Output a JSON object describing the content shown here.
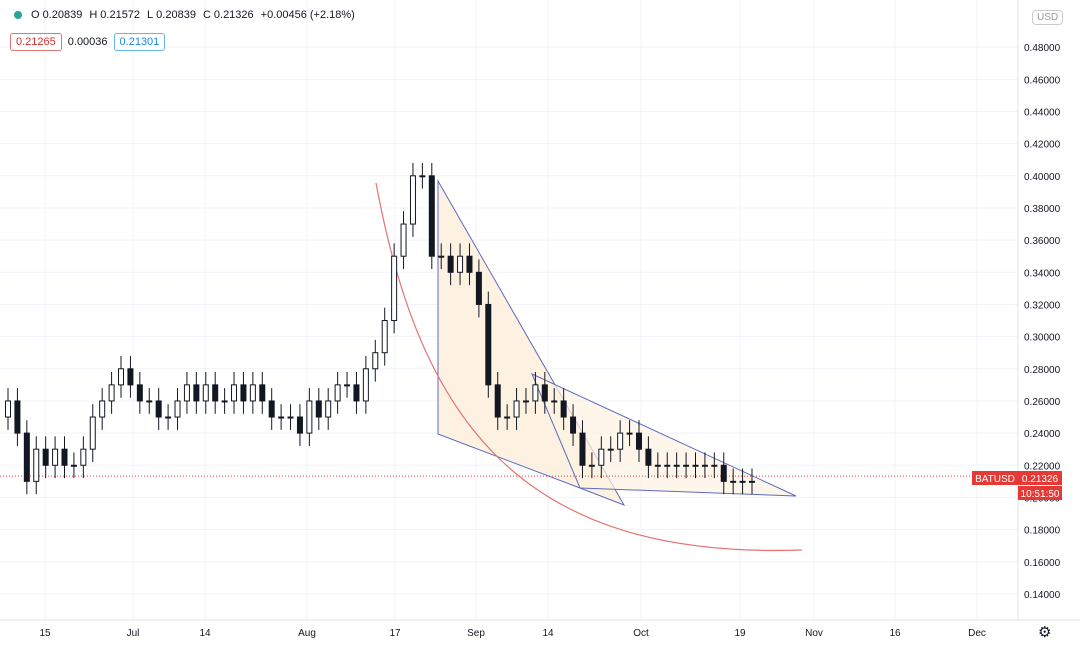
{
  "legend": {
    "open_label": "O",
    "open": "0.20839",
    "high_label": "H",
    "high": "0.21572",
    "low_label": "L",
    "low": "0.20839",
    "close_label": "C",
    "close": "0.21326",
    "change": "+0.00456 (+2.18%)"
  },
  "indicator": {
    "left": "0.21265",
    "middle": "0.00036",
    "right": "0.21301"
  },
  "currency": "USD",
  "price_tag": {
    "symbol": "BATUSD",
    "value": "0.21326",
    "countdown": "10:51:50"
  },
  "settings_icon": "gear-icon",
  "colors": {
    "up": "#26a69a",
    "down": "#131722",
    "pattern": "#5c6bc0",
    "arc": "#e57373",
    "fill": "#fdf2e1",
    "price_tag": "#e53935"
  },
  "chart_data": {
    "type": "candlestick",
    "ylim": [
      0.13,
      0.5
    ],
    "y_ticks": [
      "0.14000",
      "0.16000",
      "0.18000",
      "0.20000",
      "0.22000",
      "0.24000",
      "0.26000",
      "0.28000",
      "0.30000",
      "0.32000",
      "0.34000",
      "0.36000",
      "0.38000",
      "0.40000",
      "0.42000",
      "0.44000",
      "0.46000",
      "0.48000"
    ],
    "x_ticks": [
      "15",
      "Jul",
      "14",
      "Aug",
      "17",
      "Sep",
      "14",
      "Oct",
      "19",
      "Nov",
      "16",
      "Dec"
    ],
    "last_price": 0.21326,
    "candles": [
      0.26,
      0.24,
      0.21,
      0.23,
      0.22,
      0.23,
      0.22,
      0.22,
      0.23,
      0.25,
      0.26,
      0.27,
      0.28,
      0.27,
      0.26,
      0.26,
      0.25,
      0.25,
      0.26,
      0.27,
      0.26,
      0.27,
      0.26,
      0.26,
      0.27,
      0.26,
      0.27,
      0.26,
      0.25,
      0.25,
      0.25,
      0.24,
      0.26,
      0.25,
      0.26,
      0.27,
      0.27,
      0.26,
      0.28,
      0.29,
      0.31,
      0.35,
      0.37,
      0.4,
      0.4,
      0.35,
      0.35,
      0.34,
      0.35,
      0.34,
      0.32,
      0.27,
      0.25,
      0.25,
      0.26,
      0.26,
      0.27,
      0.26,
      0.26,
      0.25,
      0.24,
      0.22,
      0.22,
      0.23,
      0.23,
      0.24,
      0.24,
      0.23,
      0.22,
      0.22,
      0.22,
      0.22,
      0.22,
      0.22,
      0.22,
      0.22,
      0.21,
      0.21,
      0.21,
      0.21
    ]
  }
}
